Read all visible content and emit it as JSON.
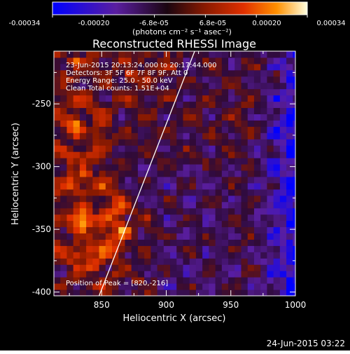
{
  "colorbar": {
    "ticks": [
      "-0.00034",
      "-0.00020",
      "-6.8e-05",
      "6.8e-05",
      "0.00020",
      "0.00034"
    ],
    "units": "(photons cm⁻² s⁻¹ asec⁻²)"
  },
  "chart_data": {
    "type": "heatmap",
    "title": "Reconstructed RHESSI Image",
    "xlabel": "Heliocentric X (arcsec)",
    "ylabel": "Heliocentric Y (arcsec)",
    "xlim": [
      813,
      1000
    ],
    "ylim": [
      -403,
      -208
    ],
    "xticks": [
      850,
      900,
      950,
      1000
    ],
    "yticks": [
      -250,
      -300,
      -350,
      -400
    ],
    "value_range": [
      -0.00034,
      0.00034
    ],
    "colormap": [
      "#0000ff",
      "#5a1ea0",
      "#2e0a3a",
      "#8a1a00",
      "#e03000",
      "#ff9000",
      "#ffe060",
      "#ffffff"
    ],
    "limb_line": [
      [
        848,
        -403
      ],
      [
        922,
        -208
      ]
    ],
    "annotations": [
      "23-Jun-2015 20:13:24.000 to 20:17:44.000",
      "Detectors: 3F 5F 6F 7F 8F 9F, Att 0",
      "Energy Range: 25.0 - 50.0 keV",
      "Clean     Total counts: 1.51E+04"
    ],
    "peak_label": "Position of Peak = [820,-216]",
    "peak": [
      820,
      -216
    ]
  },
  "footer": {
    "date": "24-Jun-2015 03:22"
  }
}
